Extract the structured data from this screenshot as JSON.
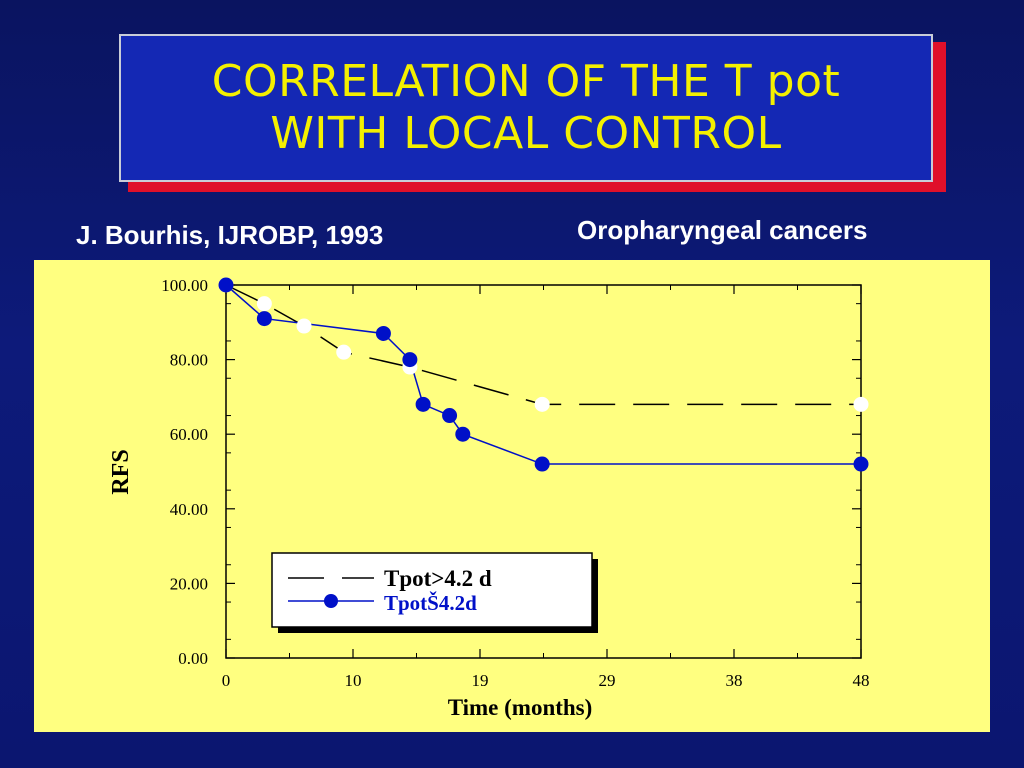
{
  "slide": {
    "title_line1": "CORRELATION OF THE T pot",
    "title_line2": "WITH LOCAL CONTROL",
    "citation": "J. Bourhis, IJROBP, 1993",
    "topic": "Oropharyngeal cancers"
  },
  "colors": {
    "background": "#0d1a7a",
    "title_box": "#1428b4",
    "title_text": "#f4f000",
    "title_shadow": "#e0102a",
    "chart_panel": "#ffff80",
    "series_low": "#0010c8",
    "series_high": "#000000"
  },
  "chart_data": {
    "type": "line",
    "title": "",
    "xlabel": "Time (months)",
    "ylabel": "RFS",
    "xlim": [
      0,
      48
    ],
    "ylim": [
      0,
      100
    ],
    "x_ticks": [
      "0",
      "10",
      "19",
      "29",
      "38",
      "48"
    ],
    "x_tick_values": [
      0,
      9.6,
      19.2,
      28.8,
      38.4,
      48
    ],
    "y_ticks": [
      "0.00",
      "20.00",
      "40.00",
      "60.00",
      "80.00",
      "100.00"
    ],
    "y_tick_values": [
      0,
      20,
      40,
      60,
      80,
      100
    ],
    "grid": false,
    "legend_position": "lower-left",
    "series": [
      {
        "name": "Tpot>4.2 d",
        "style": "dashed",
        "line_color": "#000000",
        "marker_color": "#ffffff",
        "x": [
          0,
          2.9,
          5.9,
          8.9,
          13.9,
          23.9,
          48
        ],
        "y": [
          100,
          95,
          89,
          82,
          78,
          68,
          68
        ]
      },
      {
        "name": "TpotŠ4.2d",
        "style": "solid",
        "line_color": "#0010c8",
        "marker_color": "#0010c8",
        "x": [
          0,
          2.9,
          11.9,
          13.9,
          14.9,
          16.9,
          17.9,
          23.9,
          48
        ],
        "y": [
          100,
          91,
          87,
          80,
          68,
          65,
          60,
          52,
          52
        ]
      }
    ]
  }
}
